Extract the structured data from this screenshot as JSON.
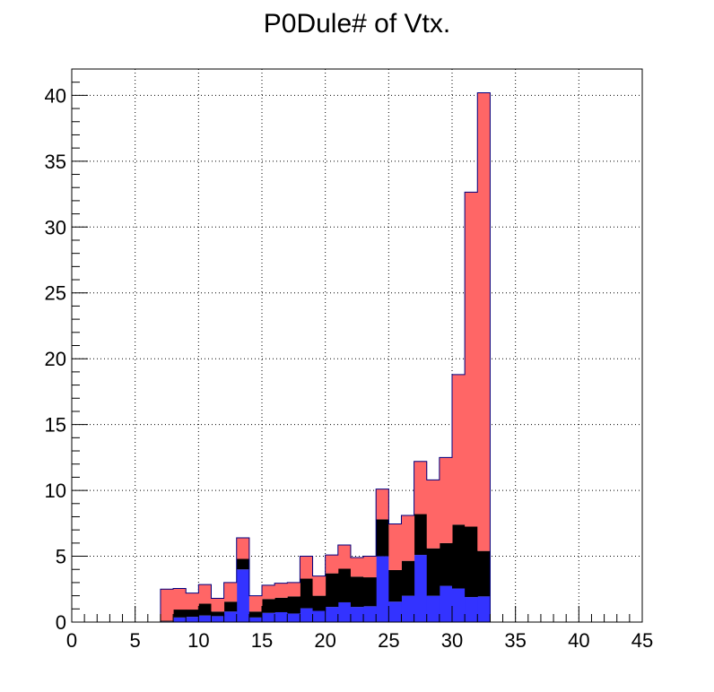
{
  "chart_data": {
    "type": "bar",
    "stacked": true,
    "histogram": true,
    "title": "P0Dule# of Vtx.",
    "xlabel": "",
    "ylabel": "",
    "xlim": [
      0,
      45
    ],
    "ylim": [
      0,
      42
    ],
    "bin_width": 1,
    "grid": true,
    "x_ticks": [
      0,
      5,
      10,
      15,
      20,
      25,
      30,
      35,
      40,
      45
    ],
    "y_ticks": [
      0,
      5,
      10,
      15,
      20,
      25,
      30,
      35,
      40
    ],
    "bin_starts": [
      7,
      8,
      9,
      10,
      11,
      12,
      13,
      14,
      15,
      16,
      17,
      18,
      19,
      20,
      21,
      22,
      23,
      24,
      25,
      26,
      27,
      28,
      29,
      30,
      31,
      32
    ],
    "series": [
      {
        "color": "#3333ff",
        "values": [
          0.05,
          0.35,
          0.4,
          0.5,
          0.45,
          0.8,
          4.0,
          0.35,
          0.7,
          0.75,
          0.65,
          1.05,
          0.85,
          1.15,
          1.5,
          1.15,
          1.2,
          5.0,
          1.55,
          2.0,
          5.1,
          2.0,
          2.75,
          2.55,
          1.9,
          1.95
        ]
      },
      {
        "color": "#000000",
        "values": [
          0.05,
          0.6,
          0.55,
          0.9,
          0.35,
          0.75,
          0.8,
          0.45,
          1.05,
          1.1,
          1.3,
          2.25,
          1.15,
          2.55,
          2.55,
          2.3,
          2.2,
          2.8,
          2.4,
          2.65,
          3.1,
          3.6,
          3.25,
          4.85,
          5.35,
          3.45
        ]
      },
      {
        "color": "#ff6666",
        "values": [
          2.4,
          1.6,
          1.25,
          1.45,
          1.0,
          1.45,
          1.6,
          1.2,
          1.05,
          1.1,
          1.05,
          1.7,
          1.5,
          1.4,
          1.8,
          1.45,
          1.6,
          2.3,
          3.5,
          3.45,
          4.0,
          5.2,
          6.5,
          11.4,
          25.4,
          34.8
        ]
      }
    ],
    "frame_color": "#000000",
    "outline_color": "#000080"
  }
}
